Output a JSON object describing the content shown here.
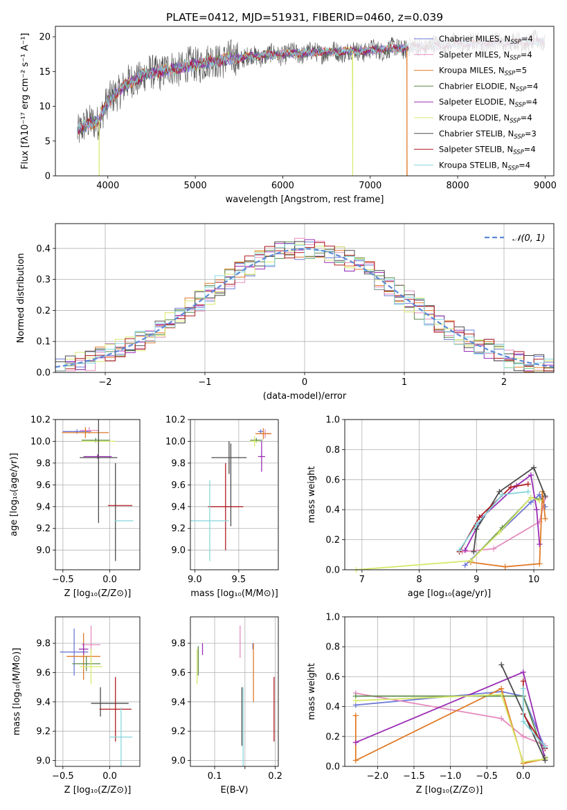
{
  "figure_title": "PLATE=0412, MJD=51931, FIBERID=0460, z=0.039",
  "colors": {
    "ChabrierMILES": "#6b77d6",
    "SalpeterMILES": "#e48bbd",
    "KroupaMILES": "#e07a26",
    "ChabrierELODIE": "#5a8a4a",
    "SalpeterELODIE": "#9a2db4",
    "KroupaELODIE": "#d7e86a",
    "ChabrierSTELIB": "#4a4a4a",
    "SalpeterSTELIB": "#b0191e",
    "KroupaSTELIB": "#86d6dc",
    "gaussian": "#5b8ad6",
    "grid": "#b0b0b0"
  },
  "chart_data": [
    {
      "id": "spectrum",
      "type": "line",
      "xlabel": "wavelength [Angstrom, rest frame]",
      "ylabel": "Flux [fλ10⁻¹⁷ erg cm⁻² s⁻¹ A⁻¹]",
      "xlim": [
        3400,
        9100
      ],
      "ylim": [
        0,
        21.5
      ],
      "xticks": [
        4000,
        5000,
        6000,
        7000,
        8000,
        9000
      ],
      "yticks": [
        0,
        5,
        10,
        15,
        20
      ],
      "grid": false,
      "legend_position": "top-right",
      "data_range_x": [
        3650,
        9000
      ],
      "continuum": {
        "x": [
          3650,
          3700,
          3800,
          3900,
          3950,
          4000,
          4100,
          4200,
          4400,
          4600,
          4800,
          5000,
          5200,
          5500,
          6000,
          6500,
          7000,
          7500,
          8000,
          8500,
          9000
        ],
        "y": [
          6.5,
          7.0,
          7.5,
          8.0,
          9.5,
          10.5,
          12.0,
          13.0,
          14.5,
          15.0,
          15.5,
          16.0,
          16.5,
          17.0,
          17.5,
          17.8,
          18.0,
          18.5,
          19.0,
          19.2,
          19.3
        ]
      },
      "drops": [
        {
          "model": "KroupaELODIE",
          "x": 3900
        },
        {
          "model": "KroupaELODIE",
          "x": 6800
        },
        {
          "model": "KroupaMILES",
          "x": 7420
        }
      ],
      "legend": [
        {
          "model": "ChabrierMILES",
          "label": "Chabrier MILES, N",
          "sub": "SSP",
          "tail": "=4"
        },
        {
          "model": "SalpeterMILES",
          "label": "Salpeter MILES, N",
          "sub": "SSP",
          "tail": "=4"
        },
        {
          "model": "KroupaMILES",
          "label": "Kroupa MILES, N",
          "sub": "SSP",
          "tail": "=5"
        },
        {
          "model": "ChabrierELODIE",
          "label": "Chabrier ELODIE, N",
          "sub": "SSP",
          "tail": "=4"
        },
        {
          "model": "SalpeterELODIE",
          "label": "Salpeter ELODIE, N",
          "sub": "SSP",
          "tail": "=4"
        },
        {
          "model": "KroupaELODIE",
          "label": "Kroupa ELODIE, N",
          "sub": "SSP",
          "tail": "=4"
        },
        {
          "model": "ChabrierSTELIB",
          "label": "Chabrier STELIB, N",
          "sub": "SSP",
          "tail": "=3"
        },
        {
          "model": "SalpeterSTELIB",
          "label": "Salpeter STELIB, N",
          "sub": "SSP",
          "tail": "=4"
        },
        {
          "model": "KroupaSTELIB",
          "label": "Kroupa STELIB, N",
          "sub": "SSP",
          "tail": "=4"
        }
      ]
    },
    {
      "id": "residuals",
      "type": "histogram",
      "xlabel": "(data-model)/error",
      "ylabel": "Normed distribution",
      "xlim": [
        -2.5,
        2.5
      ],
      "ylim": [
        0,
        0.48
      ],
      "xticks": [
        -2,
        -1,
        0,
        1,
        2
      ],
      "xticklabels": [
        "−2",
        "−1",
        "0",
        "1",
        "2"
      ],
      "yticks": [
        0.0,
        0.1,
        0.2,
        0.3,
        0.4
      ],
      "yticklabels": [
        "0.0",
        "0.1",
        "0.2",
        "0.3",
        "0.4"
      ],
      "grid": true,
      "legend_position": "top-right",
      "gaussian_label": "𝒩(0, 1)",
      "bin_width": 0.1
    },
    {
      "id": "age-vs-Z",
      "type": "errorbar",
      "xlabel": "Z [log₁₀(Z/Z⊙)]",
      "ylabel": "age  [log₁₀(age/yr)]",
      "xlim": [
        -0.58,
        0.32
      ],
      "ylim": [
        8.82,
        10.2
      ],
      "xticks": [
        -0.5,
        0.0
      ],
      "xticklabels": [
        "−0.5",
        "0.0"
      ],
      "yticks": [
        9.0,
        9.2,
        9.4,
        9.6,
        9.8,
        10.0,
        10.2
      ],
      "yticklabels": [
        "9.0",
        "9.2",
        "9.4",
        "9.6",
        "9.8",
        "10.0",
        "10.2"
      ],
      "grid": true,
      "points": [
        {
          "model": "ChabrierMILES",
          "x": -0.35,
          "xerr": 0.15,
          "y": 10.09,
          "yerr": 0.02
        },
        {
          "model": "SalpeterMILES",
          "x": -0.22,
          "xerr": 0.1,
          "y": 10.1,
          "yerr": 0.03
        },
        {
          "model": "KroupaMILES",
          "x": -0.26,
          "xerr": 0.25,
          "y": 10.08,
          "yerr": 0.05
        },
        {
          "model": "ChabrierELODIE",
          "x": -0.15,
          "xerr": 0.15,
          "y": 10.01,
          "yerr": 0.02
        },
        {
          "model": "KroupaELODIE",
          "x": -0.12,
          "xerr": 0.18,
          "y": 10.0,
          "yerr": 0.03
        },
        {
          "model": "SalpeterELODIE",
          "x": -0.13,
          "xerr": 0.15,
          "y": 9.86,
          "yerr": 0.02
        },
        {
          "model": "ChabrierSTELIB",
          "x": -0.12,
          "xerr": 0.2,
          "y": 9.85,
          "yerr": 0.6
        },
        {
          "model": "ChabrierSTELIB",
          "x": 0.06,
          "xerr": 0.0,
          "y": 9.35,
          "yerr": 0.45
        },
        {
          "model": "SalpeterSTELIB",
          "x": 0.11,
          "xerr": 0.13,
          "y": 9.41,
          "yerr": 0.0
        },
        {
          "model": "KroupaSTELIB",
          "x": 0.15,
          "xerr": 0.1,
          "y": 9.27,
          "yerr": 0.0
        }
      ]
    },
    {
      "id": "age-vs-mass",
      "type": "errorbar",
      "xlabel": "mass [log₁₀(M/M⊙)]",
      "ylabel": "",
      "xlim": [
        8.95,
        9.95
      ],
      "ylim": [
        8.82,
        10.2
      ],
      "xticks": [
        9.0,
        9.5
      ],
      "xticklabels": [
        "9.0",
        "9.5"
      ],
      "yticks": [
        9.0,
        9.2,
        9.4,
        9.6,
        9.8,
        10.0,
        10.2
      ],
      "yticklabels": [
        "9.0",
        "9.2",
        "9.4",
        "9.6",
        "9.8",
        "10.0",
        "10.2"
      ],
      "grid": true,
      "points": [
        {
          "model": "ChabrierMILES",
          "x": 9.75,
          "xerr": 0.03,
          "y": 10.09,
          "yerr": 0.02
        },
        {
          "model": "SalpeterMILES",
          "x": 9.8,
          "xerr": 0.07,
          "y": 10.07,
          "yerr": 0.04
        },
        {
          "model": "KroupaMILES",
          "x": 9.78,
          "xerr": 0.09,
          "y": 10.07,
          "yerr": 0.05
        },
        {
          "model": "ChabrierELODIE",
          "x": 9.7,
          "xerr": 0.07,
          "y": 10.01,
          "yerr": 0.02
        },
        {
          "model": "KroupaELODIE",
          "x": 9.68,
          "xerr": 0.05,
          "y": 10.0,
          "yerr": 0.05
        },
        {
          "model": "SalpeterELODIE",
          "x": 9.76,
          "xerr": 0.04,
          "y": 9.86,
          "yerr": 0.14
        },
        {
          "model": "ChabrierSTELIB",
          "x": 9.39,
          "xerr": 0.2,
          "y": 9.85,
          "yerr": 0.15
        },
        {
          "model": "ChabrierSTELIB",
          "x": 9.41,
          "xerr": 0.0,
          "y": 9.6,
          "yerr": 0.38
        },
        {
          "model": "SalpeterSTELIB",
          "x": 9.35,
          "xerr": 0.2,
          "y": 9.4,
          "yerr": 0.4
        },
        {
          "model": "KroupaSTELIB",
          "x": 9.17,
          "xerr": 0.22,
          "y": 9.27,
          "yerr": 0.37
        }
      ]
    },
    {
      "id": "mass-weight-vs-age",
      "type": "line",
      "xlabel": "age  [log₁₀(age/yr)]",
      "ylabel": "mass weight",
      "xlim": [
        6.7,
        10.35
      ],
      "ylim": [
        0,
        1
      ],
      "xticks": [
        7,
        8,
        9,
        10
      ],
      "xticklabels": [
        "7",
        "8",
        "9",
        "10"
      ],
      "yticks": [
        0.0,
        0.2,
        0.4,
        0.6,
        0.8,
        1.0
      ],
      "yticklabels": [
        "0.0",
        "0.2",
        "0.4",
        "0.6",
        "0.8",
        "1.0"
      ],
      "grid": true,
      "series": [
        {
          "model": "ChabrierMILES",
          "x": [
            8.8,
            9.95,
            10.1,
            10.2
          ],
          "y": [
            0.03,
            0.45,
            0.5,
            0.42
          ]
        },
        {
          "model": "SalpeterMILES",
          "x": [
            8.75,
            9.3,
            10.1,
            10.2
          ],
          "y": [
            0.12,
            0.14,
            0.32,
            0.48
          ]
        },
        {
          "model": "KroupaMILES",
          "x": [
            8.9,
            9.5,
            10.1,
            10.15,
            10.2
          ],
          "y": [
            0.05,
            0.02,
            0.04,
            0.52,
            0.34
          ]
        },
        {
          "model": "ChabrierELODIE",
          "x": [
            8.9,
            9.45,
            9.95,
            10.1
          ],
          "y": [
            0.06,
            0.28,
            0.48,
            0.47
          ]
        },
        {
          "model": "SalpeterELODIE",
          "x": [
            8.8,
            9.1,
            9.7,
            9.95,
            10.05,
            10.1
          ],
          "y": [
            0.13,
            0.35,
            0.56,
            0.63,
            0.4,
            0.17
          ]
        },
        {
          "model": "KroupaELODIE",
          "x": [
            6.9,
            8.9,
            9.4,
            9.95,
            10.1
          ],
          "y": [
            0.0,
            0.06,
            0.25,
            0.48,
            0.46
          ]
        },
        {
          "model": "ChabrierSTELIB",
          "x": [
            8.95,
            9.0,
            9.4,
            10.0,
            10.2
          ],
          "y": [
            0.12,
            0.27,
            0.52,
            0.68,
            0.49
          ]
        },
        {
          "model": "SalpeterSTELIB",
          "x": [
            8.7,
            9.05,
            9.6,
            9.9
          ],
          "y": [
            0.12,
            0.35,
            0.55,
            0.57
          ]
        },
        {
          "model": "KroupaSTELIB",
          "x": [
            8.7,
            9.0,
            9.45,
            9.9
          ],
          "y": [
            0.13,
            0.3,
            0.5,
            0.52
          ]
        }
      ]
    },
    {
      "id": "mass-vs-Z",
      "type": "errorbar",
      "xlabel": "Z [log₁₀(Z/Z⊙)]",
      "ylabel": "mass [log₁₀(M/M⊙)]",
      "xlim": [
        -0.58,
        0.32
      ],
      "ylim": [
        8.96,
        9.98
      ],
      "xticks": [
        -0.5,
        0.0
      ],
      "xticklabels": [
        "−0.5",
        "0.0"
      ],
      "yticks": [
        9.0,
        9.2,
        9.4,
        9.6,
        9.8
      ],
      "yticklabels": [
        "9.0",
        "9.2",
        "9.4",
        "9.6",
        "9.8"
      ],
      "grid": true,
      "points": [
        {
          "model": "ChabrierMILES",
          "x": -0.38,
          "xerr": 0.15,
          "y": 9.74,
          "yerr": 0.16
        },
        {
          "model": "SalpeterMILES",
          "x": -0.2,
          "xerr": 0.1,
          "y": 9.79,
          "yerr": 0.13
        },
        {
          "model": "KroupaMILES",
          "x": -0.28,
          "xerr": 0.18,
          "y": 9.71,
          "yerr": 0.16
        },
        {
          "model": "ChabrierELODIE",
          "x": -0.25,
          "xerr": 0.15,
          "y": 9.66,
          "yerr": 0.05
        },
        {
          "model": "KroupaELODIE",
          "x": -0.2,
          "xerr": 0.12,
          "y": 9.64,
          "yerr": 0.12
        },
        {
          "model": "SalpeterELODIE",
          "x": -0.28,
          "xerr": 0.05,
          "y": 9.76,
          "yerr": 0.04
        },
        {
          "model": "ChabrierSTELIB",
          "x": -0.1,
          "xerr": 0.0,
          "y": 9.4,
          "yerr": 0.1
        },
        {
          "model": "ChabrierSTELIB",
          "x": 0.0,
          "xerr": 0.2,
          "y": 9.39,
          "yerr": 0.0
        },
        {
          "model": "SalpeterSTELIB",
          "x": 0.06,
          "xerr": 0.17,
          "y": 9.35,
          "yerr": 0.22
        },
        {
          "model": "KroupaSTELIB",
          "x": 0.12,
          "xerr": 0.12,
          "y": 9.16,
          "yerr": 0.2
        }
      ]
    },
    {
      "id": "mass-vs-EBV",
      "type": "errorbar",
      "xlabel": "E(B-V)",
      "ylabel": "",
      "xlim": [
        0.06,
        0.205
      ],
      "ylim": [
        8.96,
        9.98
      ],
      "xticks": [
        0.1,
        0.15,
        0.2
      ],
      "xticklabels": [
        "0.1",
        "",
        "0.2"
      ],
      "yticks": [
        9.0,
        9.2,
        9.4,
        9.6,
        9.8
      ],
      "yticklabels": [
        "9.0",
        "9.2",
        "9.4",
        "9.6",
        "9.8"
      ],
      "grid": true,
      "points": [
        {
          "model": "KroupaELODIE",
          "x": 0.071,
          "xerr": 0.0,
          "y": 9.64,
          "yerr": 0.12
        },
        {
          "model": "ChabrierELODIE",
          "x": 0.073,
          "xerr": 0.0,
          "y": 9.68,
          "yerr": 0.1
        },
        {
          "model": "SalpeterELODIE",
          "x": 0.08,
          "xerr": 0.0,
          "y": 9.76,
          "yerr": 0.04
        },
        {
          "model": "SalpeterMILES",
          "x": 0.142,
          "xerr": 0.0,
          "y": 9.81,
          "yerr": 0.11
        },
        {
          "model": "ChabrierSTELIB",
          "x": 0.145,
          "xerr": 0.0,
          "y": 9.3,
          "yerr": 0.2
        },
        {
          "model": "KroupaSTELIB",
          "x": 0.147,
          "xerr": 0.0,
          "y": 9.23,
          "yerr": 0.27
        },
        {
          "model": "ChabrierMILES",
          "x": 0.163,
          "xerr": 0.0,
          "y": 9.78,
          "yerr": 0.02
        },
        {
          "model": "KroupaMILES",
          "x": 0.164,
          "xerr": 0.0,
          "y": 9.6,
          "yerr": 0.2
        },
        {
          "model": "SalpeterSTELIB",
          "x": 0.198,
          "xerr": 0.0,
          "y": 9.35,
          "yerr": 0.22
        }
      ]
    },
    {
      "id": "mass-weight-vs-Z",
      "type": "line",
      "xlabel": "Z [log₁₀(Z/Z⊙)]",
      "ylabel": "mass weight",
      "xlim": [
        -2.45,
        0.42
      ],
      "ylim": [
        0,
        1
      ],
      "xticks": [
        -2.0,
        -1.5,
        -1.0,
        -0.5,
        0.0
      ],
      "xticklabels": [
        "−2.0",
        "−1.5",
        "−1.0",
        "−0.5",
        "0.0"
      ],
      "yticks": [
        0.0,
        0.2,
        0.4,
        0.6,
        0.8,
        1.0
      ],
      "yticklabels": [
        "0.0",
        "0.2",
        "0.4",
        "0.6",
        "0.8",
        "1.0"
      ],
      "grid": true,
      "series": [
        {
          "model": "ChabrierMILES",
          "x": [
            -2.3,
            -0.3,
            0.0,
            0.3
          ],
          "y": [
            0.41,
            0.5,
            0.47,
            0.12
          ]
        },
        {
          "model": "SalpeterMILES",
          "x": [
            -2.3,
            -0.3,
            0.0,
            0.3
          ],
          "y": [
            0.49,
            0.32,
            0.2,
            0.14
          ]
        },
        {
          "model": "KroupaMILES",
          "x": [
            -2.3,
            -2.3,
            -0.3,
            0.0,
            0.3
          ],
          "y": [
            0.34,
            0.04,
            0.52,
            0.02,
            0.05
          ]
        },
        {
          "model": "ChabrierELODIE",
          "x": [
            -2.3,
            0.0,
            0.3
          ],
          "y": [
            0.47,
            0.47,
            0.06
          ]
        },
        {
          "model": "SalpeterELODIE",
          "x": [
            -2.3,
            0.0,
            0.3
          ],
          "y": [
            0.16,
            0.63,
            0.05
          ]
        },
        {
          "model": "KroupaELODIE",
          "x": [
            -2.3,
            -0.3,
            0.0,
            0.3
          ],
          "y": [
            0.44,
            0.48,
            0.03,
            0.05
          ]
        },
        {
          "model": "ChabrierSTELIB",
          "x": [
            -0.3,
            0.3
          ],
          "y": [
            0.68,
            0.04
          ]
        },
        {
          "model": "SalpeterSTELIB",
          "x": [
            0.0,
            0.0,
            0.3
          ],
          "y": [
            0.57,
            0.35,
            0.12
          ]
        },
        {
          "model": "KroupaSTELIB",
          "x": [
            0.0,
            0.0,
            0.3
          ],
          "y": [
            0.52,
            0.3,
            0.13
          ]
        }
      ]
    }
  ]
}
